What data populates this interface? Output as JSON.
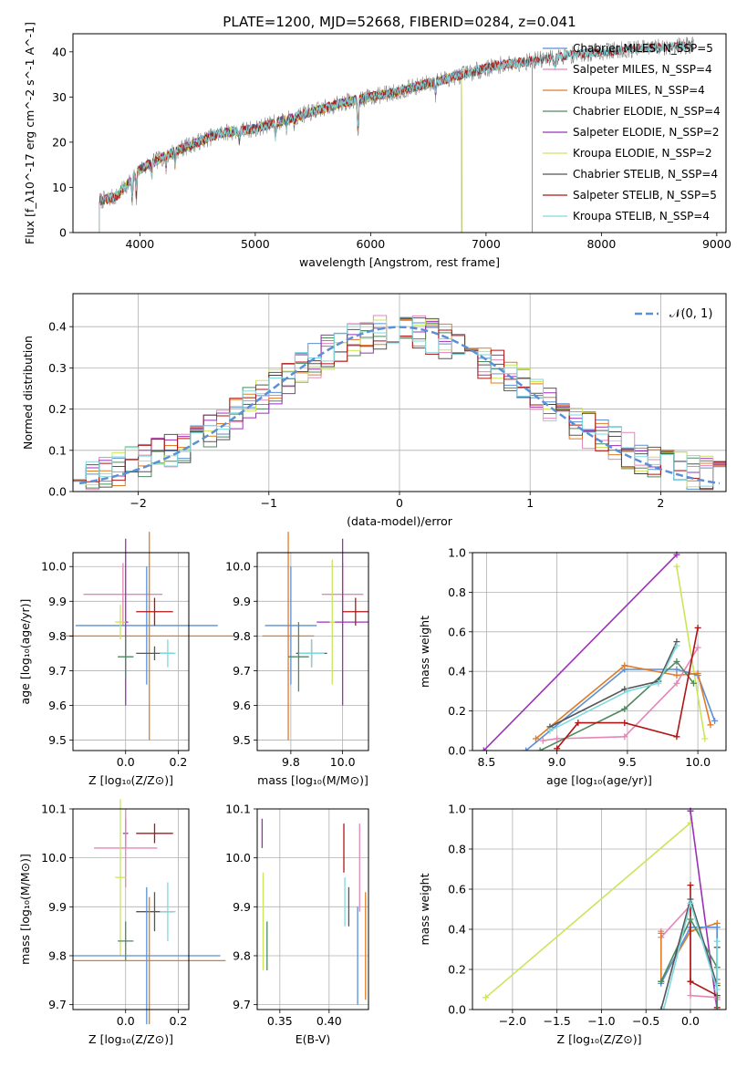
{
  "colors": {
    "chabrier_miles": "#5b8fd6",
    "salpeter_miles": "#e486b7",
    "kroupa_miles": "#e07b27",
    "chabrier_elodie": "#4e8a5e",
    "salpeter_elodie": "#9b30b8",
    "kroupa_elodie": "#c9e65a",
    "chabrier_stelib": "#555555",
    "salpeter_stelib": "#b01515",
    "kroupa_stelib": "#7ed9de",
    "normal_curve": "#5b8fd6"
  },
  "chart_data": [
    {
      "id": "spectrum",
      "type": "line",
      "title": "PLATE=1200, MJD=52668, FIBERID=0284, z=0.041",
      "xlabel": "wavelength [Angstrom, rest frame]",
      "ylabel": "Flux [f_λ10^-17 erg cm^-2 s^-1 A^-1]",
      "xlim": [
        3420,
        9080
      ],
      "ylim": [
        0,
        44
      ],
      "xticks": [
        4000,
        5000,
        6000,
        7000,
        8000,
        9000
      ],
      "yticks": [
        0,
        10,
        20,
        30,
        40
      ],
      "x_range_data": [
        3650,
        8800
      ],
      "legend_placement": "top-right",
      "series": [
        {
          "name": "Chabrier MILES, N_SSP=5",
          "key": "chabrier_miles",
          "end": 7400
        },
        {
          "name": "Salpeter MILES, N_SSP=4",
          "key": "salpeter_miles",
          "end": 7400
        },
        {
          "name": "Kroupa MILES, N_SSP=4",
          "key": "kroupa_miles",
          "end": 7400
        },
        {
          "name": "Chabrier ELODIE, N_SSP=4",
          "key": "chabrier_elodie",
          "end": 6790
        },
        {
          "name": "Salpeter ELODIE, N_SSP=2",
          "key": "salpeter_elodie",
          "end": 6790
        },
        {
          "name": "Kroupa ELODIE, N_SSP=2",
          "key": "kroupa_elodie",
          "end": 6790
        },
        {
          "name": "Chabrier STELIB, N_SSP=4",
          "key": "chabrier_stelib",
          "end": 8800
        },
        {
          "name": "Salpeter STELIB, N_SSP=5",
          "key": "salpeter_stelib",
          "end": 8800
        },
        {
          "name": "Kroupa STELIB, N_SSP=4",
          "key": "kroupa_stelib",
          "end": 8800
        }
      ],
      "continuum_knots": [
        [
          3650,
          7
        ],
        [
          3800,
          8
        ],
        [
          4000,
          14
        ],
        [
          4300,
          18
        ],
        [
          4700,
          22
        ],
        [
          5000,
          23
        ],
        [
          5400,
          26
        ],
        [
          5800,
          29
        ],
        [
          6200,
          31
        ],
        [
          6500,
          33
        ],
        [
          6800,
          35
        ],
        [
          7100,
          37
        ],
        [
          7400,
          38
        ],
        [
          7800,
          39.5
        ],
        [
          8200,
          40.5
        ],
        [
          8800,
          41.5
        ]
      ],
      "absorption_lines": [
        [
          3934,
          6
        ],
        [
          3969,
          6
        ],
        [
          4102,
          3
        ],
        [
          4227,
          3
        ],
        [
          4305,
          4
        ],
        [
          4861,
          3
        ],
        [
          5175,
          4
        ],
        [
          5270,
          2
        ],
        [
          5335,
          2
        ],
        [
          5890,
          10
        ],
        [
          6563,
          3
        ],
        [
          7600,
          3
        ]
      ]
    },
    {
      "id": "residuals",
      "type": "histogram",
      "xlabel": "(data-model)/error",
      "ylabel": "Normed distribution",
      "xlim": [
        -2.5,
        2.5
      ],
      "ylim": [
        0,
        0.48
      ],
      "xticks": [
        -2,
        -1,
        0,
        1,
        2
      ],
      "yticks": [
        0.0,
        0.1,
        0.2,
        0.3,
        0.4
      ],
      "bin_edges_range": [
        -2.5,
        2.5
      ],
      "bin_width": 0.1,
      "legend": "𝒩(0, 1)",
      "legend_placement": "top-right",
      "grid": true
    },
    {
      "id": "age_vs_Z",
      "type": "scatter",
      "xlabel": "Z [log10(Z/Z⊙)]",
      "ylabel": "age [log10(age/yr)]",
      "xlim": [
        -0.2,
        0.24
      ],
      "ylim": [
        9.47,
        10.04
      ],
      "xticks": [
        0.0,
        0.2
      ],
      "yticks": [
        9.5,
        9.6,
        9.7,
        9.8,
        9.9,
        10.0
      ],
      "grid": true,
      "points": [
        {
          "key": "salpeter_miles",
          "x": -0.01,
          "y": 9.92,
          "xerr": 0.15,
          "yerr": 0.09
        },
        {
          "key": "chabrier_miles",
          "x": 0.08,
          "y": 9.83,
          "xerr": 0.27,
          "yerr": 0.17
        },
        {
          "key": "kroupa_miles",
          "x": 0.09,
          "y": 9.8,
          "xerr": 0.32,
          "yerr": 0.3
        },
        {
          "key": "salpeter_elodie",
          "x": 0.0,
          "y": 9.84,
          "xerr": 0.01,
          "yerr": 0.24
        },
        {
          "key": "kroupa_elodie",
          "x": -0.02,
          "y": 9.84,
          "xerr": 0.02,
          "yerr": 0.05
        },
        {
          "key": "chabrier_elodie",
          "x": 0.0,
          "y": 9.74,
          "xerr": 0.03,
          "yerr": 0.06
        },
        {
          "key": "salpeter_stelib",
          "x": 0.11,
          "y": 9.87,
          "xerr": 0.07,
          "yerr": 0.04
        },
        {
          "key": "chabrier_stelib",
          "x": 0.11,
          "y": 9.75,
          "xerr": 0.07,
          "yerr": 0.02
        },
        {
          "key": "kroupa_stelib",
          "x": 0.16,
          "y": 9.75,
          "xerr": 0.03,
          "yerr": 0.04
        }
      ]
    },
    {
      "id": "age_vs_mass",
      "type": "scatter",
      "xlabel": "mass [log10(M/M⊙)]",
      "ylabel": "",
      "xlim": [
        9.67,
        10.1
      ],
      "ylim": [
        9.47,
        10.04
      ],
      "xticks": [
        9.8,
        10.0
      ],
      "yticks": [
        9.5,
        9.6,
        9.7,
        9.8,
        9.9,
        10.0
      ],
      "grid": true,
      "points": [
        {
          "key": "salpeter_miles",
          "x": 10.0,
          "y": 9.92,
          "xerr": 0.08,
          "yerr": 0.09
        },
        {
          "key": "chabrier_miles",
          "x": 9.8,
          "y": 9.83,
          "xerr": 0.1,
          "yerr": 0.17
        },
        {
          "key": "kroupa_miles",
          "x": 9.79,
          "y": 9.8,
          "xerr": 0.1,
          "yerr": 0.3
        },
        {
          "key": "salpeter_elodie",
          "x": 10.0,
          "y": 9.84,
          "xerr": 0.1,
          "yerr": 0.24
        },
        {
          "key": "kroupa_elodie",
          "x": 9.96,
          "y": 9.84,
          "xerr": 0.01,
          "yerr": 0.18
        },
        {
          "key": "chabrier_elodie",
          "x": 9.83,
          "y": 9.74,
          "xerr": 0.04,
          "yerr": 0.1
        },
        {
          "key": "salpeter_stelib",
          "x": 10.05,
          "y": 9.87,
          "xerr": 0.05,
          "yerr": 0.04
        },
        {
          "key": "chabrier_stelib",
          "x": 9.88,
          "y": 9.75,
          "xerr": 0.06,
          "yerr": 0.04
        },
        {
          "key": "kroupa_stelib",
          "x": 9.88,
          "y": 9.75,
          "xerr": 0.05,
          "yerr": 0.04
        }
      ]
    },
    {
      "id": "weight_vs_age",
      "type": "line",
      "xlabel": "age [log10(age/yr)]",
      "ylabel": "mass weight",
      "xlim": [
        8.4,
        10.2
      ],
      "ylim": [
        0,
        1
      ],
      "xticks": [
        8.5,
        9.0,
        9.5,
        10.0
      ],
      "yticks": [
        0.0,
        0.2,
        0.4,
        0.6,
        0.8,
        1.0
      ],
      "grid": true,
      "series": [
        {
          "key": "salpeter_elodie",
          "x": [
            8.48,
            9.85
          ],
          "y": [
            0.0,
            0.99
          ]
        },
        {
          "key": "kroupa_elodie",
          "x": [
            9.85,
            10.05
          ],
          "y": [
            0.93,
            0.06
          ]
        },
        {
          "key": "chabrier_miles",
          "x": [
            8.78,
            9.48,
            9.85,
            10.0,
            10.12
          ],
          "y": [
            0.0,
            0.41,
            0.41,
            0.38,
            0.15
          ]
        },
        {
          "key": "kroupa_miles",
          "x": [
            8.85,
            9.48,
            9.85,
            10.0,
            10.09
          ],
          "y": [
            0.06,
            0.43,
            0.38,
            0.39,
            0.13
          ]
        },
        {
          "key": "salpeter_miles",
          "x": [
            8.9,
            9.0,
            9.48,
            9.85,
            10.0
          ],
          "y": [
            0.05,
            0.06,
            0.07,
            0.34,
            0.52
          ]
        },
        {
          "key": "chabrier_elodie",
          "x": [
            8.88,
            9.48,
            9.85,
            9.97
          ],
          "y": [
            0.0,
            0.21,
            0.45,
            0.34
          ]
        },
        {
          "key": "salpeter_stelib",
          "x": [
            9.0,
            9.15,
            9.48,
            9.85,
            10.0
          ],
          "y": [
            0.01,
            0.14,
            0.14,
            0.07,
            0.62
          ]
        },
        {
          "key": "chabrier_stelib",
          "x": [
            8.95,
            9.48,
            9.72,
            9.85
          ],
          "y": [
            0.12,
            0.31,
            0.35,
            0.55
          ]
        },
        {
          "key": "kroupa_stelib",
          "x": [
            8.95,
            9.5,
            9.72,
            9.85
          ],
          "y": [
            0.1,
            0.3,
            0.34,
            0.53
          ]
        }
      ]
    },
    {
      "id": "mass_vs_Z",
      "type": "scatter",
      "xlabel": "Z [log10(Z/Z⊙)]",
      "ylabel": "mass [log10(M/M⊙)]",
      "xlim": [
        -0.2,
        0.24
      ],
      "ylim": [
        9.69,
        10.1
      ],
      "xticks": [
        0.0,
        0.2
      ],
      "yticks": [
        9.7,
        9.8,
        9.9,
        10.0,
        10.1
      ],
      "grid": true,
      "points": [
        {
          "key": "salpeter_elodie",
          "x": 0.0,
          "y": 10.05,
          "xerr": 0.01,
          "yerr": 0.03
        },
        {
          "key": "salpeter_stelib",
          "x": 0.11,
          "y": 10.05,
          "xerr": 0.07,
          "yerr": 0.02
        },
        {
          "key": "salpeter_miles",
          "x": 0.0,
          "y": 10.02,
          "xerr": 0.12,
          "yerr": 0.08
        },
        {
          "key": "kroupa_elodie",
          "x": -0.02,
          "y": 9.96,
          "xerr": 0.02,
          "yerr": 0.16
        },
        {
          "key": "chabrier_stelib",
          "x": 0.11,
          "y": 9.89,
          "xerr": 0.07,
          "yerr": 0.04
        },
        {
          "key": "kroupa_stelib",
          "x": 0.16,
          "y": 9.89,
          "xerr": 0.03,
          "yerr": 0.06
        },
        {
          "key": "chabrier_elodie",
          "x": 0.0,
          "y": 9.83,
          "xerr": 0.03,
          "yerr": 0.04
        },
        {
          "key": "chabrier_miles",
          "x": 0.08,
          "y": 9.8,
          "xerr": 0.28,
          "yerr": 0.14
        },
        {
          "key": "kroupa_miles",
          "x": 0.09,
          "y": 9.79,
          "xerr": 0.29,
          "yerr": 0.13
        }
      ]
    },
    {
      "id": "mass_vs_ebv",
      "type": "scatter",
      "xlabel": "E(B-V)",
      "ylabel": "",
      "xlim": [
        0.327,
        0.44
      ],
      "ylim": [
        9.69,
        10.1
      ],
      "xticks": [
        0.35,
        0.4
      ],
      "yticks": [
        9.7,
        9.8,
        9.9,
        10.0,
        10.1
      ],
      "grid": true,
      "points": [
        {
          "key": "salpeter_elodie",
          "x": 0.332,
          "y": 10.05,
          "yerr": 0.03
        },
        {
          "key": "kroupa_elodie",
          "x": 0.333,
          "y": 9.87,
          "yerr": 0.1
        },
        {
          "key": "chabrier_elodie",
          "x": 0.337,
          "y": 9.82,
          "yerr": 0.05
        },
        {
          "key": "salpeter_stelib",
          "x": 0.415,
          "y": 10.02,
          "yerr": 0.05
        },
        {
          "key": "kroupa_stelib",
          "x": 0.416,
          "y": 9.91,
          "yerr": 0.05
        },
        {
          "key": "chabrier_stelib",
          "x": 0.42,
          "y": 9.9,
          "yerr": 0.04
        },
        {
          "key": "chabrier_miles",
          "x": 0.429,
          "y": 9.8,
          "yerr": 0.1
        },
        {
          "key": "salpeter_miles",
          "x": 0.431,
          "y": 9.98,
          "yerr": 0.09
        },
        {
          "key": "kroupa_miles",
          "x": 0.437,
          "y": 9.82,
          "yerr": 0.11
        }
      ]
    },
    {
      "id": "weight_vs_Z",
      "type": "line",
      "xlabel": "Z [log10(Z/Z⊙)]",
      "ylabel": "mass weight",
      "xlim": [
        -2.45,
        0.4
      ],
      "ylim": [
        0,
        1
      ],
      "xticks": [
        -2.0,
        -1.5,
        -1.0,
        -0.5,
        0.0
      ],
      "yticks": [
        0.0,
        0.2,
        0.4,
        0.6,
        0.8,
        1.0
      ],
      "grid": true,
      "series": [
        {
          "key": "kroupa_elodie",
          "x": [
            -2.3,
            0.0
          ],
          "y": [
            0.06,
            0.93
          ]
        },
        {
          "key": "salpeter_elodie",
          "x": [
            0.0,
            0.0,
            0.3
          ],
          "y": [
            0.99,
            0.99,
            0.0
          ]
        },
        {
          "key": "salpeter_miles",
          "x": [
            -0.33,
            -0.33,
            0.0,
            0.0,
            0.3,
            0.3
          ],
          "y": [
            0.39,
            0.36,
            0.52,
            0.07,
            0.06,
            0.05
          ]
        },
        {
          "key": "kroupa_miles",
          "x": [
            -0.33,
            -0.33,
            0.0,
            0.3,
            0.3
          ],
          "y": [
            0.38,
            0.14,
            0.39,
            0.43,
            0.13
          ]
        },
        {
          "key": "chabrier_miles",
          "x": [
            -0.33,
            0.0,
            0.3,
            0.3
          ],
          "y": [
            0.13,
            0.41,
            0.41,
            0.15
          ]
        },
        {
          "key": "salpeter_stelib",
          "x": [
            0.0,
            0.0,
            0.0,
            0.3,
            0.3
          ],
          "y": [
            0.62,
            0.14,
            0.14,
            0.07,
            0.01
          ]
        },
        {
          "key": "chabrier_elodie",
          "x": [
            -0.33,
            0.0,
            0.3,
            0.3
          ],
          "y": [
            0.14,
            0.45,
            0.21,
            0.0
          ]
        },
        {
          "key": "chabrier_stelib",
          "x": [
            -0.33,
            0.0,
            0.3,
            0.3
          ],
          "y": [
            0.0,
            0.55,
            0.12,
            0.31
          ]
        },
        {
          "key": "kroupa_stelib",
          "x": [
            -0.3,
            0.0,
            0.3,
            0.3
          ],
          "y": [
            0.0,
            0.53,
            0.1,
            0.34
          ]
        }
      ]
    }
  ]
}
